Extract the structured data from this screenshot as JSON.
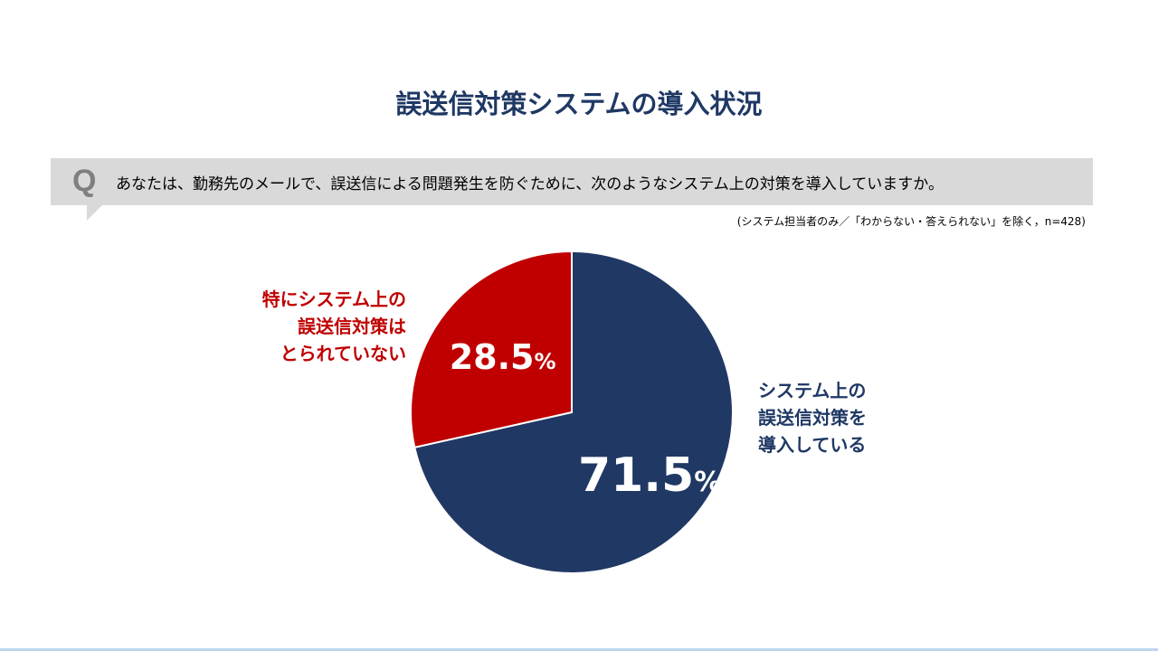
{
  "title": "誤送信対策システムの導入状況",
  "question": {
    "letter": "Q",
    "text": "あなたは、勤務先のメールで、誤送信による問題発生を防ぐために、次のようなシステム上の対策を導入していますか。"
  },
  "note": "(システム担当者のみ／「わからない・答えられない」を除く，n=428)",
  "labels": {
    "red": [
      "特にシステム上の",
      "誤送信対策は",
      "とられていない"
    ],
    "blue": [
      "システム上の",
      "誤送信対策を",
      "導入している"
    ]
  },
  "colors": {
    "red": "#c00000",
    "blue": "#203864",
    "title": "#1f3864"
  },
  "chart_data": {
    "type": "pie",
    "slices": [
      {
        "label": "システム上の誤送信対策を導入している",
        "value": 71.5,
        "display": "71.5",
        "color": "#203864"
      },
      {
        "label": "特にシステム上の誤送信対策はとられていない",
        "value": 28.5,
        "display": "28.5",
        "color": "#c00000"
      }
    ],
    "unit": "%",
    "n": 428
  }
}
